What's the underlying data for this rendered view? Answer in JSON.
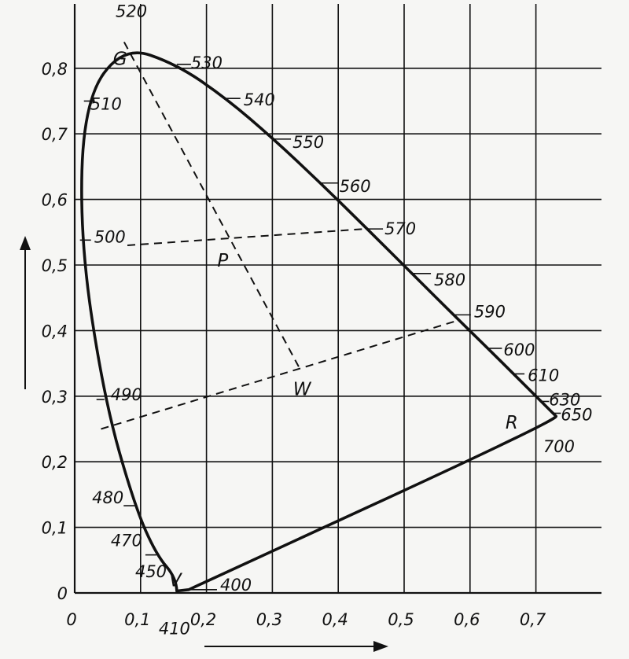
{
  "chart_data": {
    "type": "line",
    "title": "",
    "xlabel": "",
    "ylabel": "",
    "xlim": [
      0,
      0.8
    ],
    "ylim": [
      0,
      0.85
    ],
    "grid": true,
    "x_ticks": [
      "0",
      "0,1",
      "0,2",
      "0,3",
      "0,4",
      "0,5",
      "0,6",
      "0,7"
    ],
    "y_ticks": [
      "0",
      "0,1",
      "0,2",
      "0,3",
      "0,4",
      "0,5",
      "0,6",
      "0,7",
      "0,8"
    ],
    "spectral_locus": [
      {
        "wavelength": "410",
        "x": 0.155,
        "y": 0.003
      },
      {
        "wavelength": "450",
        "x": 0.154,
        "y": 0.023
      },
      {
        "wavelength": "470",
        "x": 0.124,
        "y": 0.058
      },
      {
        "wavelength": "480",
        "x": 0.091,
        "y": 0.133
      },
      {
        "wavelength": "490",
        "x": 0.045,
        "y": 0.295
      },
      {
        "wavelength": "500",
        "x": 0.008,
        "y": 0.538
      },
      {
        "wavelength": "510",
        "x": 0.014,
        "y": 0.75
      },
      {
        "wavelength": "520",
        "x": 0.074,
        "y": 0.834
      },
      {
        "wavelength": "530",
        "x": 0.155,
        "y": 0.806
      },
      {
        "wavelength": "540",
        "x": 0.23,
        "y": 0.754
      },
      {
        "wavelength": "550",
        "x": 0.302,
        "y": 0.692
      },
      {
        "wavelength": "560",
        "x": 0.373,
        "y": 0.625
      },
      {
        "wavelength": "570",
        "x": 0.444,
        "y": 0.555
      },
      {
        "wavelength": "580",
        "x": 0.512,
        "y": 0.487
      },
      {
        "wavelength": "590",
        "x": 0.575,
        "y": 0.424
      },
      {
        "wavelength": "600",
        "x": 0.627,
        "y": 0.373
      },
      {
        "wavelength": "610",
        "x": 0.666,
        "y": 0.334
      },
      {
        "wavelength": "630",
        "x": 0.708,
        "y": 0.292
      },
      {
        "wavelength": "650",
        "x": 0.726,
        "y": 0.274
      },
      {
        "wavelength": "700",
        "x": 0.735,
        "y": 0.265
      },
      {
        "wavelength": "400",
        "x": 0.173,
        "y": 0.005
      }
    ],
    "points": [
      {
        "label": "G",
        "x": 0.095,
        "y": 0.815
      },
      {
        "label": "P",
        "x": 0.22,
        "y": 0.5
      },
      {
        "label": "W",
        "x": 0.345,
        "y": 0.335
      },
      {
        "label": "R",
        "x": 0.68,
        "y": 0.26
      },
      {
        "label": "V",
        "x": 0.155,
        "y": 0.003
      }
    ],
    "dashed_lines": [
      {
        "from": [
          0.075,
          0.84
        ],
        "to": [
          0.34,
          0.345
        ]
      },
      {
        "from": [
          0.04,
          0.25
        ],
        "to": [
          0.58,
          0.415
        ]
      },
      {
        "from": [
          0.08,
          0.53
        ],
        "to": [
          0.44,
          0.555
        ]
      }
    ],
    "arrows": [
      {
        "direction": "up"
      },
      {
        "direction": "right"
      }
    ]
  }
}
